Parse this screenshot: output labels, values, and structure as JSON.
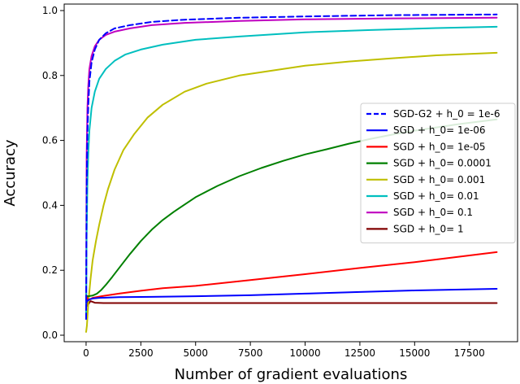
{
  "chart_data": {
    "type": "line",
    "title": "",
    "xlabel": "Number of gradient evaluations",
    "ylabel": "Accuracy",
    "xlim": [
      -1000,
      19700
    ],
    "ylim": [
      -0.02,
      1.02
    ],
    "xticks": [
      0,
      2500,
      5000,
      7500,
      10000,
      12500,
      15000,
      17500
    ],
    "xtick_labels": [
      "0",
      "2500",
      "5000",
      "7500",
      "10000",
      "12500",
      "15000",
      "17500"
    ],
    "yticks": [
      0.0,
      0.2,
      0.4,
      0.6,
      0.8,
      1.0
    ],
    "ytick_labels": [
      "0.0",
      "0.2",
      "0.4",
      "0.6",
      "0.8",
      "1.0"
    ],
    "grid": false,
    "legend_position": "center-right",
    "series": [
      {
        "name": "SGD-G2 + h_0 = 1e-6",
        "color": "#0000ff",
        "dashed": true,
        "x": [
          0,
          25,
          60,
          100,
          150,
          250,
          400,
          600,
          900,
          1300,
          2000,
          3000,
          4500,
          7000,
          10000,
          14000,
          18750
        ],
        "y": [
          0.05,
          0.45,
          0.62,
          0.71,
          0.78,
          0.84,
          0.88,
          0.91,
          0.93,
          0.945,
          0.955,
          0.965,
          0.972,
          0.978,
          0.982,
          0.986,
          0.988
        ]
      },
      {
        "name": "SGD + h_0= 1e-06",
        "color": "#0000ff",
        "dashed": false,
        "x": [
          0,
          50,
          150,
          300,
          600,
          1500,
          3000,
          5000,
          7500,
          10000,
          12500,
          15000,
          18750
        ],
        "y": [
          0.1,
          0.105,
          0.11,
          0.113,
          0.115,
          0.117,
          0.118,
          0.12,
          0.123,
          0.128,
          0.133,
          0.138,
          0.143
        ]
      },
      {
        "name": "SGD + h_0= 1e-05",
        "color": "#ff0000",
        "dashed": false,
        "x": [
          0,
          100,
          300,
          700,
          1500,
          2500,
          3500,
          5000,
          7500,
          10000,
          12500,
          15000,
          18750
        ],
        "y": [
          0.12,
          0.108,
          0.115,
          0.12,
          0.128,
          0.137,
          0.145,
          0.152,
          0.17,
          0.188,
          0.207,
          0.225,
          0.256
        ]
      },
      {
        "name": "SGD + h_0= 0.0001",
        "color": "#008000",
        "dashed": false,
        "x": [
          0,
          100,
          300,
          500,
          700,
          900,
          1200,
          1600,
          2000,
          2500,
          3000,
          3500,
          4000,
          5000,
          6000,
          7000,
          8000,
          9000,
          10000,
          11000,
          12000,
          13000,
          14000,
          15000,
          16000,
          17000,
          18750
        ],
        "y": [
          0.12,
          0.12,
          0.122,
          0.128,
          0.14,
          0.155,
          0.18,
          0.215,
          0.25,
          0.29,
          0.325,
          0.355,
          0.38,
          0.425,
          0.46,
          0.49,
          0.515,
          0.537,
          0.557,
          0.573,
          0.59,
          0.605,
          0.618,
          0.63,
          0.64,
          0.65,
          0.665
        ]
      },
      {
        "name": "SGD + h_0= 0.001",
        "color": "#bfbf00",
        "dashed": false,
        "x": [
          0,
          40,
          100,
          200,
          300,
          450,
          600,
          800,
          1000,
          1300,
          1700,
          2200,
          2800,
          3500,
          4500,
          5500,
          7000,
          8500,
          10000,
          12000,
          14000,
          16000,
          18750
        ],
        "y": [
          0.01,
          0.03,
          0.1,
          0.17,
          0.23,
          0.29,
          0.34,
          0.4,
          0.45,
          0.51,
          0.57,
          0.62,
          0.67,
          0.71,
          0.75,
          0.775,
          0.8,
          0.815,
          0.83,
          0.843,
          0.853,
          0.862,
          0.87
        ]
      },
      {
        "name": "SGD + h_0= 0.01",
        "color": "#00bfbf",
        "dashed": false,
        "x": [
          0,
          25,
          60,
          100,
          150,
          250,
          400,
          600,
          900,
          1300,
          1800,
          2500,
          3500,
          5000,
          7000,
          10000,
          13000,
          16000,
          18750
        ],
        "y": [
          0.05,
          0.3,
          0.47,
          0.56,
          0.63,
          0.7,
          0.75,
          0.79,
          0.82,
          0.845,
          0.865,
          0.88,
          0.895,
          0.91,
          0.92,
          0.933,
          0.94,
          0.946,
          0.95
        ]
      },
      {
        "name": "SGD + h_0= 0.1",
        "color": "#bf00bf",
        "dashed": false,
        "x": [
          0,
          25,
          60,
          100,
          150,
          250,
          400,
          600,
          900,
          1300,
          2000,
          3000,
          4500,
          7000,
          10000,
          14000,
          18750
        ],
        "y": [
          0.05,
          0.55,
          0.7,
          0.77,
          0.82,
          0.86,
          0.89,
          0.91,
          0.925,
          0.935,
          0.945,
          0.955,
          0.962,
          0.968,
          0.973,
          0.976,
          0.978
        ]
      },
      {
        "name": "SGD + h_0= 1",
        "color": "#800000",
        "dashed": false,
        "x": [
          0,
          30,
          60,
          100,
          200,
          400,
          800,
          2000,
          5000,
          10000,
          18750
        ],
        "y": [
          0.13,
          0.09,
          0.12,
          0.095,
          0.105,
          0.1,
          0.099,
          0.099,
          0.099,
          0.099,
          0.099
        ]
      }
    ]
  }
}
